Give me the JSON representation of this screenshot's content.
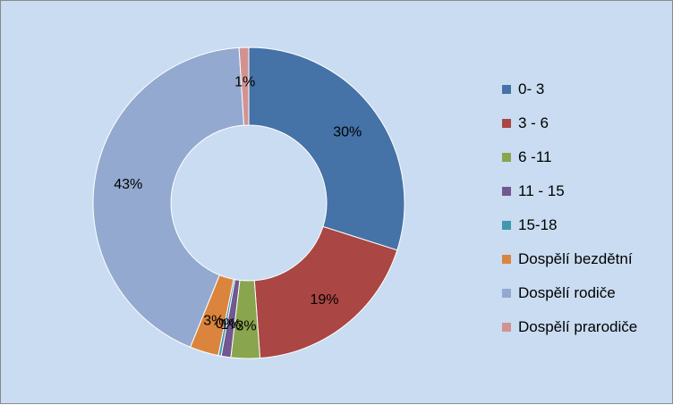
{
  "chart_data": {
    "type": "pie",
    "donut": true,
    "categories": [
      "0- 3",
      "3 - 6",
      "6 -11",
      "11 - 15",
      "15-18",
      "Dospělí bezdětní",
      "Dospělí rodiče",
      "Dospělí prarodiče"
    ],
    "values": [
      30,
      19,
      3,
      1,
      0,
      3,
      43,
      1
    ],
    "data_labels": [
      "30%",
      "19%",
      "3%",
      "1%",
      "0%",
      "3%",
      "43%",
      "1%"
    ],
    "colors": [
      "#4572a7",
      "#aa4643",
      "#89a54e",
      "#71588f",
      "#4198af",
      "#db843d",
      "#93a9cf",
      "#d19392"
    ],
    "legend_position": "right",
    "background": "#c9dcf1"
  }
}
